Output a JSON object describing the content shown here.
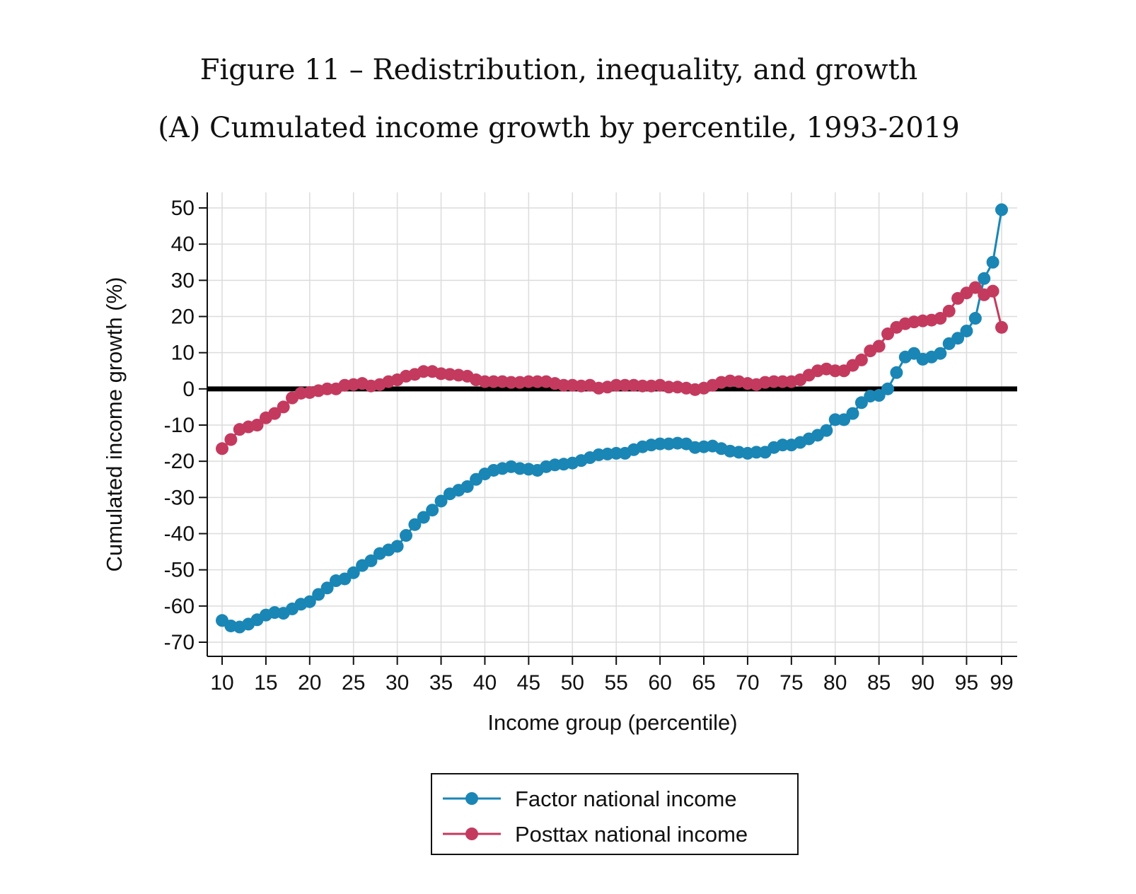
{
  "figure": {
    "title": "Figure 11 – Redistribution, inequality, and growth",
    "subtitle": "(A) Cumulated income growth by percentile, 1993-2019"
  },
  "chart_data": {
    "type": "line",
    "xlabel": "Income group (percentile)",
    "ylabel": "Cumulated income growth (%)",
    "xlim": [
      10,
      99
    ],
    "ylim": [
      -70,
      50
    ],
    "xticks": [
      10,
      15,
      20,
      25,
      30,
      35,
      40,
      45,
      50,
      55,
      60,
      65,
      70,
      75,
      80,
      85,
      90,
      95,
      99
    ],
    "yticks": [
      50,
      40,
      30,
      20,
      10,
      0,
      -10,
      -20,
      -30,
      -40,
      -50,
      -60,
      -70
    ],
    "reference_line_y": 0,
    "grid": true,
    "legend_position": "bottom",
    "x": [
      10,
      11,
      12,
      13,
      14,
      15,
      16,
      17,
      18,
      19,
      20,
      21,
      22,
      23,
      24,
      25,
      26,
      27,
      28,
      29,
      30,
      31,
      32,
      33,
      34,
      35,
      36,
      37,
      38,
      39,
      40,
      41,
      42,
      43,
      44,
      45,
      46,
      47,
      48,
      49,
      50,
      51,
      52,
      53,
      54,
      55,
      56,
      57,
      58,
      59,
      60,
      61,
      62,
      63,
      64,
      65,
      66,
      67,
      68,
      69,
      70,
      71,
      72,
      73,
      74,
      75,
      76,
      77,
      78,
      79,
      80,
      81,
      82,
      83,
      84,
      85,
      86,
      87,
      88,
      89,
      90,
      91,
      92,
      93,
      94,
      95,
      96,
      97,
      98,
      99
    ],
    "series": [
      {
        "name": "Factor national income",
        "color": "#1a86b5",
        "values": [
          -64.0,
          -65.5,
          -65.8,
          -65.0,
          -63.8,
          -62.5,
          -61.8,
          -62.0,
          -60.8,
          -59.5,
          -58.8,
          -56.8,
          -55.0,
          -53.0,
          -52.5,
          -50.8,
          -48.8,
          -47.5,
          -45.5,
          -44.5,
          -43.5,
          -40.5,
          -37.5,
          -35.5,
          -33.5,
          -31.0,
          -29.0,
          -28.0,
          -27.0,
          -25.0,
          -23.5,
          -22.5,
          -22.0,
          -21.5,
          -22.0,
          -22.2,
          -22.5,
          -21.5,
          -21.0,
          -20.8,
          -20.5,
          -19.8,
          -19.0,
          -18.2,
          -18.0,
          -17.8,
          -17.8,
          -16.8,
          -16.0,
          -15.5,
          -15.2,
          -15.2,
          -15.0,
          -15.2,
          -16.2,
          -16.0,
          -15.8,
          -16.5,
          -17.2,
          -17.5,
          -17.8,
          -17.5,
          -17.5,
          -16.2,
          -15.5,
          -15.5,
          -14.8,
          -13.8,
          -12.8,
          -11.5,
          -8.5,
          -8.5,
          -6.8,
          -3.8,
          -2.0,
          -1.8,
          0.0,
          4.5,
          8.8,
          9.8,
          8.2,
          8.8,
          9.8,
          12.5,
          14.0,
          16.0,
          19.5,
          30.5,
          35.0,
          49.5
        ]
      },
      {
        "name": "Posttax national income",
        "color": "#c43a5e",
        "values": [
          -16.5,
          -14.0,
          -11.2,
          -10.5,
          -10.0,
          -8.0,
          -6.8,
          -5.0,
          -2.5,
          -1.2,
          -1.0,
          -0.5,
          0.0,
          0.0,
          1.0,
          1.2,
          1.5,
          0.8,
          1.2,
          2.0,
          2.5,
          3.5,
          4.0,
          4.8,
          4.8,
          4.2,
          4.0,
          3.8,
          3.5,
          2.5,
          2.0,
          2.0,
          2.0,
          1.8,
          1.8,
          2.0,
          2.0,
          2.0,
          1.5,
          1.0,
          1.0,
          0.8,
          1.0,
          0.2,
          0.5,
          1.0,
          1.0,
          1.0,
          0.8,
          0.8,
          1.0,
          0.5,
          0.5,
          0.2,
          -0.2,
          0.2,
          1.0,
          1.8,
          2.2,
          2.0,
          1.5,
          1.2,
          1.8,
          2.0,
          2.0,
          2.0,
          2.5,
          3.8,
          5.0,
          5.5,
          5.0,
          5.0,
          6.5,
          8.0,
          10.5,
          11.8,
          15.2,
          17.0,
          18.0,
          18.5,
          18.8,
          19.0,
          19.5,
          21.5,
          25.0,
          26.5,
          28.0,
          26.0,
          27.0,
          17.0
        ]
      }
    ]
  }
}
